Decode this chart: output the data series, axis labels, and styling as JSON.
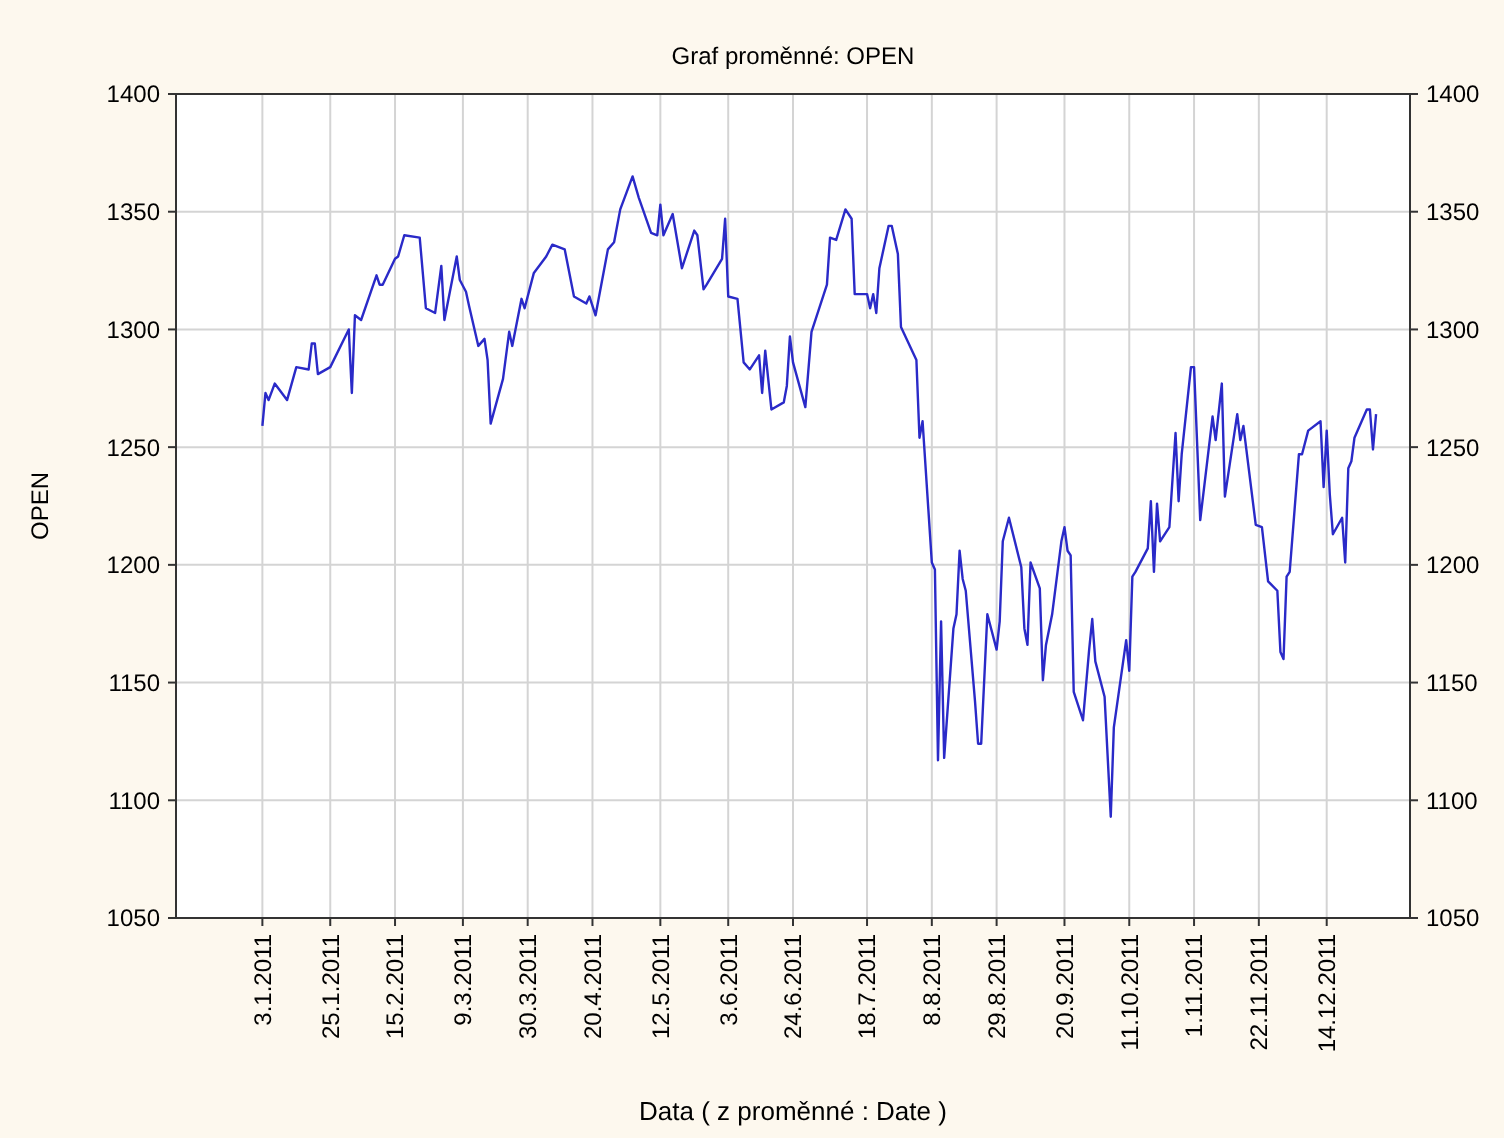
{
  "chart_data": {
    "type": "line",
    "title": "Graf proměnné: OPEN",
    "xlabel": "Data  ( z proměnné : Date )",
    "ylabel": "OPEN",
    "xlim": [
      "2010-12-06",
      "2012-01-10"
    ],
    "xticks": [
      {
        "value": "2011-01-03",
        "label": "3.1.2011"
      },
      {
        "value": "2011-01-25",
        "label": "25.1.2011"
      },
      {
        "value": "2011-02-15",
        "label": "15.2.2011"
      },
      {
        "value": "2011-03-09",
        "label": "9.3.2011"
      },
      {
        "value": "2011-03-30",
        "label": "30.3.2011"
      },
      {
        "value": "2011-04-20",
        "label": "20.4.2011"
      },
      {
        "value": "2011-05-12",
        "label": "12.5.2011"
      },
      {
        "value": "2011-06-03",
        "label": "3.6.2011"
      },
      {
        "value": "2011-06-24",
        "label": "24.6.2011"
      },
      {
        "value": "2011-07-18",
        "label": "18.7.2011"
      },
      {
        "value": "2011-08-08",
        "label": "8.8.2011"
      },
      {
        "value": "2011-08-29",
        "label": "29.8.2011"
      },
      {
        "value": "2011-09-20",
        "label": "20.9.2011"
      },
      {
        "value": "2011-10-11",
        "label": "11.10.2011"
      },
      {
        "value": "2011-11-01",
        "label": "1.11.2011"
      },
      {
        "value": "2011-11-22",
        "label": "22.11.2011"
      },
      {
        "value": "2011-12-14",
        "label": "14.12.2011"
      }
    ],
    "ylim": [
      1050,
      1400
    ],
    "yticks": [
      1050,
      1100,
      1150,
      1200,
      1250,
      1300,
      1350,
      1400
    ],
    "y2lim": [
      1050,
      1400
    ],
    "y2ticks": [
      1050,
      1100,
      1150,
      1200,
      1250,
      1300,
      1350,
      1400
    ],
    "grid": true,
    "marker": "none",
    "line_style": "solid",
    "series": [
      {
        "color": "#2a2ac8",
        "x": [
          "2011-01-03",
          "2011-01-04",
          "2011-01-05",
          "2011-01-07",
          "2011-01-11",
          "2011-01-14",
          "2011-01-18",
          "2011-01-19",
          "2011-01-20",
          "2011-01-21",
          "2011-01-25",
          "2011-01-31",
          "2011-02-01",
          "2011-02-02",
          "2011-02-04",
          "2011-02-09",
          "2011-02-10",
          "2011-02-11",
          "2011-02-15",
          "2011-02-16",
          "2011-02-18",
          "2011-02-23",
          "2011-02-25",
          "2011-02-28",
          "2011-03-02",
          "2011-03-03",
          "2011-03-07",
          "2011-03-08",
          "2011-03-10",
          "2011-03-11",
          "2011-03-14",
          "2011-03-16",
          "2011-03-17",
          "2011-03-18",
          "2011-03-22",
          "2011-03-24",
          "2011-03-25",
          "2011-03-28",
          "2011-03-29",
          "2011-04-01",
          "2011-04-05",
          "2011-04-07",
          "2011-04-11",
          "2011-04-14",
          "2011-04-18",
          "2011-04-19",
          "2011-04-21",
          "2011-04-25",
          "2011-04-27",
          "2011-04-29",
          "2011-05-03",
          "2011-05-05",
          "2011-05-09",
          "2011-05-11",
          "2011-05-12",
          "2011-05-13",
          "2011-05-16",
          "2011-05-19",
          "2011-05-23",
          "2011-05-24",
          "2011-05-26",
          "2011-05-27",
          "2011-06-01",
          "2011-06-02",
          "2011-06-03",
          "2011-06-06",
          "2011-06-08",
          "2011-06-10",
          "2011-06-13",
          "2011-06-14",
          "2011-06-15",
          "2011-06-17",
          "2011-06-21",
          "2011-06-22",
          "2011-06-23",
          "2011-06-24",
          "2011-06-28",
          "2011-06-30",
          "2011-07-05",
          "2011-07-06",
          "2011-07-08",
          "2011-07-11",
          "2011-07-13",
          "2011-07-14",
          "2011-07-18",
          "2011-07-19",
          "2011-07-20",
          "2011-07-21",
          "2011-07-22",
          "2011-07-25",
          "2011-07-26",
          "2011-07-28",
          "2011-07-29",
          "2011-08-03",
          "2011-08-04",
          "2011-08-05",
          "2011-08-08",
          "2011-08-09",
          "2011-08-10",
          "2011-08-11",
          "2011-08-12",
          "2011-08-15",
          "2011-08-16",
          "2011-08-17",
          "2011-08-18",
          "2011-08-19",
          "2011-08-22",
          "2011-08-23",
          "2011-08-24",
          "2011-08-26",
          "2011-08-29",
          "2011-08-30",
          "2011-08-31",
          "2011-09-02",
          "2011-09-06",
          "2011-09-07",
          "2011-09-08",
          "2011-09-09",
          "2011-09-12",
          "2011-09-13",
          "2011-09-14",
          "2011-09-16",
          "2011-09-19",
          "2011-09-20",
          "2011-09-21",
          "2011-09-22",
          "2011-09-23",
          "2011-09-26",
          "2011-09-28",
          "2011-09-29",
          "2011-09-30",
          "2011-10-03",
          "2011-10-05",
          "2011-10-06",
          "2011-10-10",
          "2011-10-11",
          "2011-10-12",
          "2011-10-13",
          "2011-10-17",
          "2011-10-18",
          "2011-10-19",
          "2011-10-20",
          "2011-10-21",
          "2011-10-24",
          "2011-10-26",
          "2011-10-27",
          "2011-10-28",
          "2011-10-31",
          "2011-11-01",
          "2011-11-03",
          "2011-11-07",
          "2011-11-08",
          "2011-11-10",
          "2011-11-11",
          "2011-11-15",
          "2011-11-16",
          "2011-11-17",
          "2011-11-21",
          "2011-11-23",
          "2011-11-25",
          "2011-11-28",
          "2011-11-29",
          "2011-11-30",
          "2011-12-01",
          "2011-12-02",
          "2011-12-05",
          "2011-12-06",
          "2011-12-08",
          "2011-12-12",
          "2011-12-13",
          "2011-12-14",
          "2011-12-15",
          "2011-12-16",
          "2011-12-19",
          "2011-12-20",
          "2011-12-21",
          "2011-12-22",
          "2011-12-23",
          "2011-12-27",
          "2011-12-28",
          "2011-12-29",
          "2011-12-30"
        ],
        "values": [
          1259,
          1273,
          1270,
          1277,
          1270,
          1284,
          1283,
          1294,
          1294,
          1281,
          1284,
          1300,
          1273,
          1306,
          1304,
          1323,
          1319,
          1319,
          1330,
          1331,
          1340,
          1339,
          1309,
          1307,
          1327,
          1304,
          1331,
          1321,
          1316,
          1310,
          1293,
          1296,
          1287,
          1260,
          1279,
          1299,
          1293,
          1313,
          1309,
          1324,
          1331,
          1336,
          1334,
          1314,
          1311,
          1314,
          1306,
          1334,
          1337,
          1351,
          1365,
          1356,
          1341,
          1340,
          1353,
          1340,
          1349,
          1326,
          1342,
          1340,
          1317,
          1319,
          1330,
          1347,
          1314,
          1313,
          1286,
          1283,
          1289,
          1273,
          1291,
          1266,
          1269,
          1276,
          1297,
          1286,
          1267,
          1299,
          1319,
          1339,
          1338,
          1351,
          1347,
          1315,
          1315,
          1309,
          1315,
          1307,
          1326,
          1344,
          1344,
          1332,
          1301,
          1287,
          1254,
          1261,
          1201,
          1198,
          1117,
          1176,
          1118,
          1173,
          1179,
          1206,
          1194,
          1189,
          1142,
          1124,
          1124,
          1179,
          1164,
          1176,
          1210,
          1220,
          1199,
          1173,
          1166,
          1201,
          1190,
          1151,
          1166,
          1179,
          1210,
          1216,
          1206,
          1204,
          1146,
          1134,
          1164,
          1177,
          1159,
          1144,
          1093,
          1131,
          1168,
          1155,
          1195,
          1197,
          1207,
          1227,
          1197,
          1226,
          1210,
          1216,
          1256,
          1227,
          1247,
          1284,
          1284,
          1219,
          1263,
          1253,
          1277,
          1229,
          1264,
          1253,
          1259,
          1217,
          1216,
          1193,
          1189,
          1163,
          1160,
          1195,
          1197,
          1247,
          1247,
          1257,
          1261,
          1233,
          1257,
          1230,
          1213,
          1220,
          1201,
          1241,
          1244,
          1254,
          1266,
          1266,
          1249,
          1264
        ]
      }
    ]
  }
}
